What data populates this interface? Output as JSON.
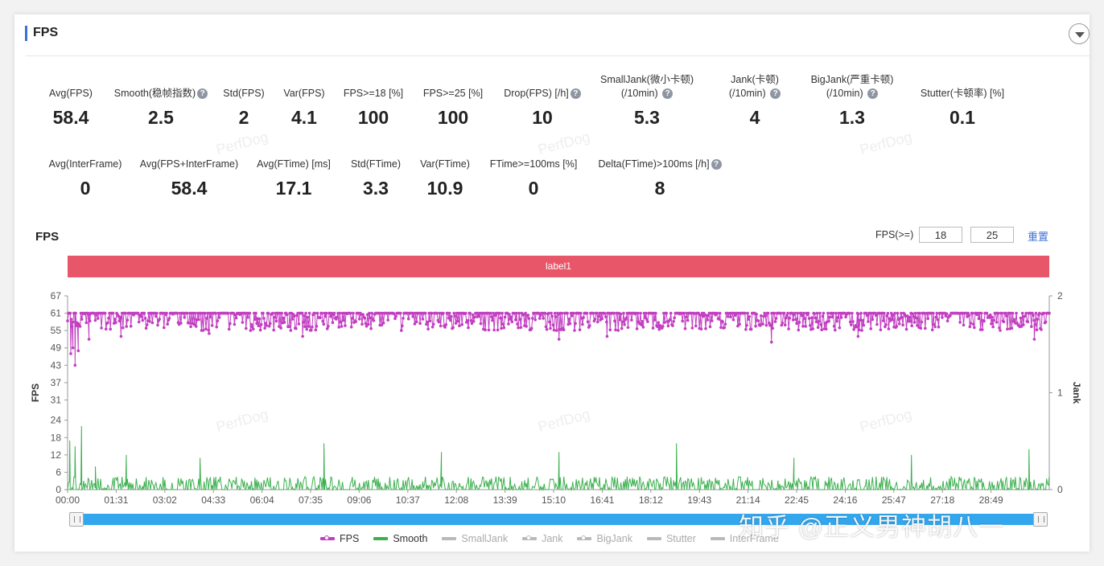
{
  "panel": {
    "title": "FPS"
  },
  "metrics_row1": [
    {
      "label": "Avg(FPS)",
      "value": "58.4",
      "help": false
    },
    {
      "label": "Smooth(稳帧指数)",
      "value": "2.5",
      "help": true
    },
    {
      "label": "Std(FPS)",
      "value": "2",
      "help": false
    },
    {
      "label": "Var(FPS)",
      "value": "4.1",
      "help": false
    },
    {
      "label": "FPS>=18 [%]",
      "value": "100",
      "help": false
    },
    {
      "label": "FPS>=25 [%]",
      "value": "100",
      "help": false
    },
    {
      "label": "Drop(FPS) [/h]",
      "value": "10",
      "help": true
    },
    {
      "label": "SmallJank(微小卡顿)",
      "label2": "(/10min)",
      "value": "5.3",
      "help": true
    },
    {
      "label": "Jank(卡顿)",
      "label2": "(/10min)",
      "value": "4",
      "help": true
    },
    {
      "label": "BigJank(严重卡顿)",
      "label2": "(/10min)",
      "value": "1.3",
      "help": true
    },
    {
      "label": "Stutter(卡顿率) [%]",
      "value": "0.1",
      "help": false
    }
  ],
  "metrics_row2": [
    {
      "label": "Avg(InterFrame)",
      "value": "0",
      "help": false
    },
    {
      "label": "Avg(FPS+InterFrame)",
      "value": "58.4",
      "help": false
    },
    {
      "label": "Avg(FTime) [ms]",
      "value": "17.1",
      "help": false
    },
    {
      "label": "Std(FTime)",
      "value": "3.3",
      "help": false
    },
    {
      "label": "Var(FTime)",
      "value": "10.9",
      "help": false
    },
    {
      "label": "FTime>=100ms [%]",
      "value": "0",
      "help": false
    },
    {
      "label": "Delta(FTime)>100ms [/h]",
      "value": "8",
      "help": true
    }
  ],
  "watermark_text": "PerfDog",
  "chart": {
    "title": "FPS",
    "filter_label": "FPS(>=)",
    "filter_values": [
      "18",
      "25"
    ],
    "reset_label": "重置",
    "label_bar": "label1",
    "help_glyph": "?"
  },
  "chart_data": {
    "type": "line",
    "ylabel": "FPS",
    "y2label": "Jank",
    "y_ticks": [
      0,
      6,
      12,
      18,
      24,
      31,
      37,
      43,
      49,
      55,
      61,
      67
    ],
    "ylim": [
      0,
      67
    ],
    "y2_ticks": [
      0,
      1,
      2
    ],
    "y2lim": [
      0,
      2
    ],
    "x_ticks": [
      "00:00",
      "01:31",
      "03:02",
      "04:33",
      "06:04",
      "07:35",
      "09:06",
      "10:37",
      "12:08",
      "13:39",
      "15:10",
      "16:41",
      "18:12",
      "19:43",
      "21:14",
      "22:45",
      "24:16",
      "25:47",
      "27:18",
      "28:49"
    ],
    "x_start_s": 0,
    "x_end_s": 1838,
    "series": [
      {
        "name": "FPS",
        "color": "#c23ec2",
        "typical_range": [
          55,
          61
        ],
        "dips": [
          [
            6,
            47
          ],
          [
            10,
            49
          ],
          [
            14,
            43
          ],
          [
            20,
            48
          ],
          [
            40,
            52
          ],
          [
            100,
            53
          ],
          [
            265,
            54
          ],
          [
            440,
            53
          ],
          [
            920,
            52
          ],
          [
            1010,
            53
          ],
          [
            1318,
            51
          ],
          [
            1480,
            53
          ],
          [
            1810,
            52
          ]
        ]
      },
      {
        "name": "Smooth",
        "color": "#3cb04f",
        "typical_range": [
          0,
          4.5
        ],
        "spikes": [
          [
            4,
            17
          ],
          [
            14,
            15
          ],
          [
            26,
            22
          ],
          [
            52,
            8
          ],
          [
            110,
            12
          ],
          [
            248,
            11
          ],
          [
            480,
            16
          ],
          [
            700,
            13
          ],
          [
            920,
            13
          ],
          [
            1140,
            16
          ],
          [
            1360,
            11
          ],
          [
            1580,
            12
          ],
          [
            1800,
            14
          ]
        ]
      }
    ],
    "legend": [
      {
        "name": "FPS",
        "color": "#c23ec2",
        "marker": true,
        "active": true
      },
      {
        "name": "Smooth",
        "color": "#3cb04f",
        "marker": false,
        "active": true
      },
      {
        "name": "SmallJank",
        "color": "#b9b9b9",
        "marker": false,
        "active": false
      },
      {
        "name": "Jank",
        "color": "#b9b9b9",
        "marker": true,
        "active": false
      },
      {
        "name": "BigJank",
        "color": "#b9b9b9",
        "marker": true,
        "active": false
      },
      {
        "name": "Stutter",
        "color": "#b9b9b9",
        "marker": false,
        "active": false
      },
      {
        "name": "InterFrame",
        "color": "#b9b9b9",
        "marker": false,
        "active": false
      }
    ]
  },
  "overlay_watermark": "知乎 @正义男神胡八一"
}
